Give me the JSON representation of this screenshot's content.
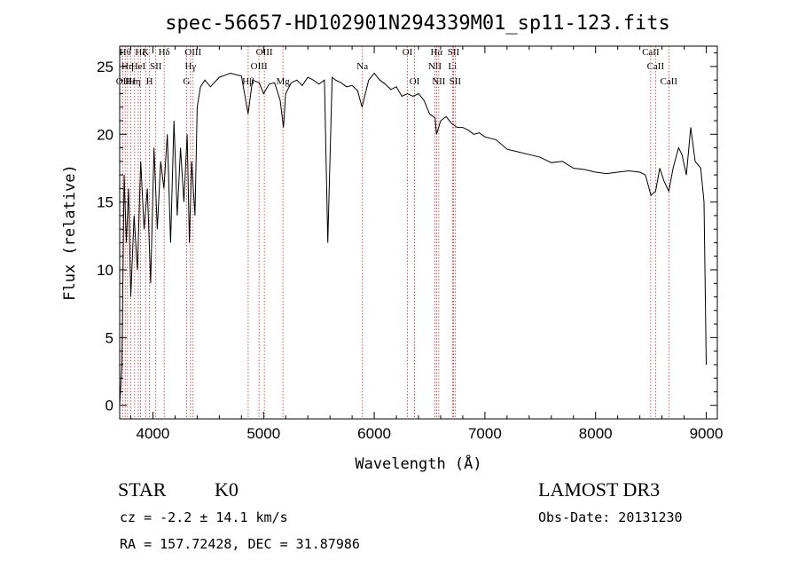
{
  "chart_data": {
    "type": "line",
    "title": "spec-56657-HD102901N294339M01_sp11-123.fits",
    "xlabel": "Wavelength (Å)",
    "ylabel": "Flux (relative)",
    "xlim": [
      3700,
      9100
    ],
    "ylim": [
      -1,
      26.5
    ],
    "x_ticks": [
      4000,
      5000,
      6000,
      7000,
      8000,
      9000
    ],
    "y_ticks": [
      0,
      5,
      10,
      15,
      20,
      25
    ],
    "grid": false,
    "series": [
      {
        "name": "flux",
        "x": [
          3700,
          3720,
          3740,
          3760,
          3780,
          3800,
          3830,
          3860,
          3890,
          3920,
          3950,
          3980,
          4010,
          4040,
          4070,
          4100,
          4130,
          4160,
          4190,
          4220,
          4250,
          4280,
          4310,
          4330,
          4350,
          4380,
          4400,
          4430,
          4470,
          4520,
          4600,
          4700,
          4800,
          4860,
          4900,
          4960,
          5000,
          5050,
          5100,
          5150,
          5180,
          5200,
          5250,
          5300,
          5350,
          5400,
          5450,
          5500,
          5550,
          5580,
          5620,
          5650,
          5700,
          5750,
          5800,
          5850,
          5890,
          5950,
          6000,
          6050,
          6100,
          6150,
          6200,
          6250,
          6300,
          6350,
          6400,
          6450,
          6500,
          6550,
          6563,
          6600,
          6650,
          6700,
          6750,
          6800,
          6850,
          6900,
          6950,
          7000,
          7100,
          7200,
          7300,
          7400,
          7500,
          7600,
          7700,
          7800,
          7900,
          8000,
          8100,
          8200,
          8300,
          8400,
          8450,
          8500,
          8542,
          8580,
          8620,
          8662,
          8700,
          8750,
          8780,
          8820,
          8860,
          8900,
          8950,
          8980,
          9000
        ],
        "y": [
          0,
          3,
          17,
          12,
          16,
          8,
          14,
          10,
          18,
          13,
          16,
          9,
          19,
          13,
          18,
          16,
          20,
          12,
          21,
          14,
          19,
          15,
          20,
          12,
          18,
          14,
          22,
          23.5,
          24,
          23.5,
          24.2,
          24.5,
          24.3,
          21.5,
          24,
          23.8,
          23,
          23.7,
          23.8,
          22.5,
          20.5,
          23,
          23.8,
          24,
          23.6,
          24.2,
          24,
          23.7,
          24,
          12,
          24.2,
          24,
          23.8,
          23.5,
          23.6,
          23.2,
          22,
          24,
          24.5,
          24,
          23.7,
          23.3,
          23.5,
          22.8,
          23,
          22.8,
          23,
          22.5,
          21.5,
          21.2,
          20,
          21,
          21.3,
          20.8,
          20.5,
          20.5,
          20.3,
          20,
          20.1,
          19.8,
          19.6,
          18.9,
          18.7,
          18.5,
          18.3,
          17.9,
          18,
          17.5,
          17.4,
          17.2,
          17.1,
          17.2,
          17.3,
          17.2,
          17,
          15.5,
          15.8,
          17.5,
          16.5,
          15.8,
          17.5,
          19,
          18.5,
          17,
          20.5,
          18,
          17.5,
          15,
          3
        ]
      }
    ],
    "line_markers": [
      {
        "wavelength": 3727,
        "label": "OII",
        "row": 3
      },
      {
        "wavelength": 3750,
        "label": "Hθ",
        "row": 1
      },
      {
        "wavelength": 3771,
        "label": "Hη",
        "row": 2
      },
      {
        "wavelength": 3799,
        "label": "Hε",
        "row": 3
      },
      {
        "wavelength": 3835,
        "label": "Hη",
        "row": 3
      },
      {
        "wavelength": 3868,
        "label": "HeI",
        "row": 2
      },
      {
        "wavelength": 3889,
        "label": "Hζ",
        "row": 1
      },
      {
        "wavelength": 3934,
        "label": "K",
        "row": 1
      },
      {
        "wavelength": 3969,
        "label": "H",
        "row": 3
      },
      {
        "wavelength": 4026,
        "label": "SII",
        "row": 2
      },
      {
        "wavelength": 4102,
        "label": "Hδ",
        "row": 1
      },
      {
        "wavelength": 4304,
        "label": "G",
        "row": 3
      },
      {
        "wavelength": 4340,
        "label": "Hγ",
        "row": 2
      },
      {
        "wavelength": 4363,
        "label": "OIII",
        "row": 1
      },
      {
        "wavelength": 4861,
        "label": "Hβ",
        "row": 3
      },
      {
        "wavelength": 4959,
        "label": "OIII",
        "row": 2
      },
      {
        "wavelength": 5007,
        "label": "OIII",
        "row": 1
      },
      {
        "wavelength": 5175,
        "label": "Mg",
        "row": 3
      },
      {
        "wavelength": 5893,
        "label": "Na",
        "row": 2
      },
      {
        "wavelength": 6300,
        "label": "OI",
        "row": 1
      },
      {
        "wavelength": 6364,
        "label": "OI",
        "row": 3
      },
      {
        "wavelength": 6548,
        "label": "NII",
        "row": 2
      },
      {
        "wavelength": 6563,
        "label": "Hα",
        "row": 1
      },
      {
        "wavelength": 6583,
        "label": "NII",
        "row": 3
      },
      {
        "wavelength": 6707,
        "label": "Li",
        "row": 2
      },
      {
        "wavelength": 6716,
        "label": "SII",
        "row": 1
      },
      {
        "wavelength": 6731,
        "label": "SII",
        "row": 3
      },
      {
        "wavelength": 8498,
        "label": "CaII",
        "row": 1
      },
      {
        "wavelength": 8542,
        "label": "CaII",
        "row": 2
      },
      {
        "wavelength": 8662,
        "label": "CaII",
        "row": 3
      }
    ]
  },
  "info": {
    "class": "STAR",
    "subclass": "K0",
    "survey": "LAMOST DR3",
    "redshift": "cz = -2.2 ± 14.1 km/s",
    "obs_date": "Obs-Date: 20131230",
    "coords": "RA = 157.72428, DEC =  31.87986"
  }
}
